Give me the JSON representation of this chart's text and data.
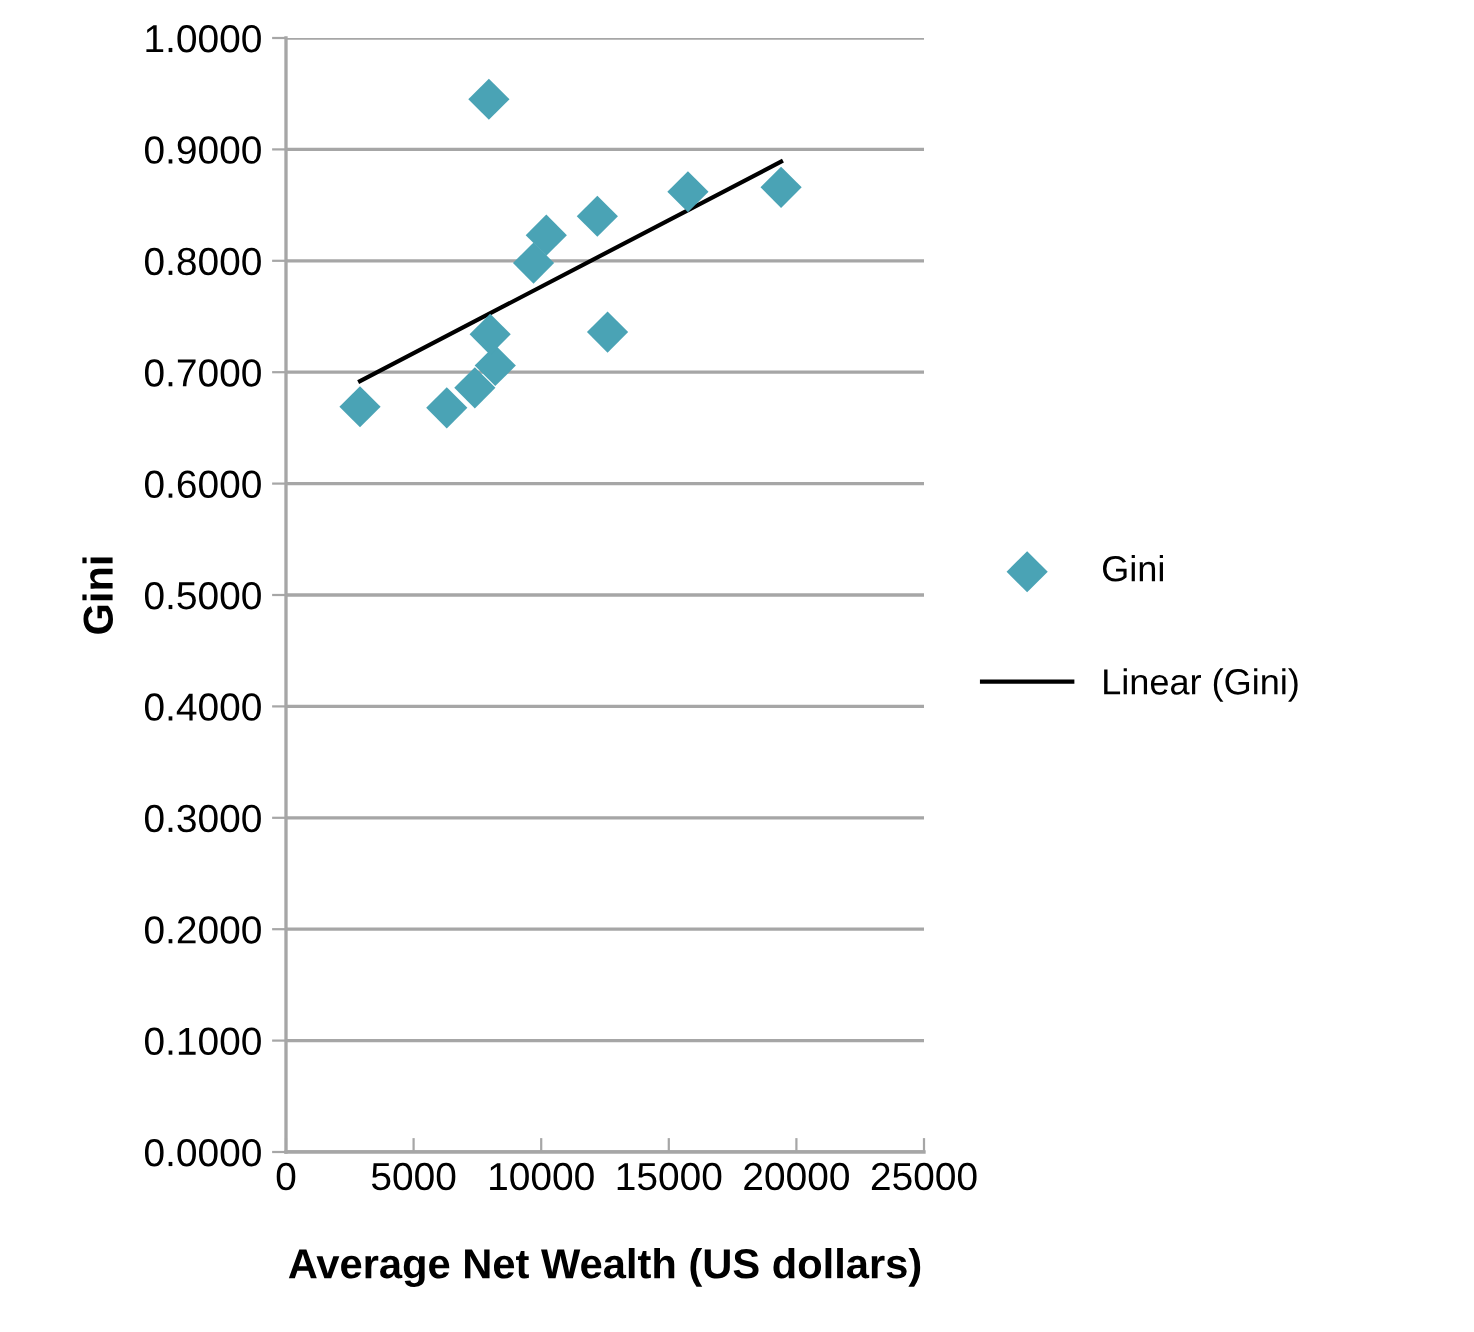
{
  "chart_data": {
    "type": "scatter",
    "xlabel": "Average Net Wealth (US dollars)",
    "ylabel": "Gini",
    "xlim": [
      0,
      25000
    ],
    "xticks": [
      0,
      5000,
      10000,
      15000,
      20000,
      25000
    ],
    "ylim": [
      0,
      1
    ],
    "yticks": [
      {
        "value": 0,
        "label": "0.0000"
      },
      {
        "value": 0.1,
        "label": "0.1000"
      },
      {
        "value": 0.2,
        "label": "0.2000"
      },
      {
        "value": 0.3,
        "label": "0.3000"
      },
      {
        "value": 0.4,
        "label": "0.4000"
      },
      {
        "value": 0.5,
        "label": "0.5000"
      },
      {
        "value": 0.6,
        "label": "0.6000"
      },
      {
        "value": 0.7,
        "label": "0.7000"
      },
      {
        "value": 0.8,
        "label": "0.8000"
      },
      {
        "value": 0.9,
        "label": "0.9000"
      },
      {
        "value": 1,
        "label": "1.0000"
      }
    ],
    "grid": "y",
    "legend": "right",
    "series": [
      {
        "name": "Gini",
        "marker": "diamond",
        "color": "#4aa3b5",
        "x": [
          2900,
          6300,
          7400,
          8200,
          8000,
          7950,
          9700,
          10200,
          12200,
          12600,
          15750,
          19400
        ],
        "values": [
          0.669,
          0.668,
          0.686,
          0.706,
          0.734,
          0.945,
          0.798,
          0.823,
          0.84,
          0.736,
          0.862,
          0.866
        ]
      },
      {
        "name": "Linear (Gini)",
        "type": "line",
        "marker": "none",
        "color": "#000000",
        "x": [
          2900,
          19400
        ],
        "values": [
          0.692,
          0.889
        ]
      }
    ]
  }
}
